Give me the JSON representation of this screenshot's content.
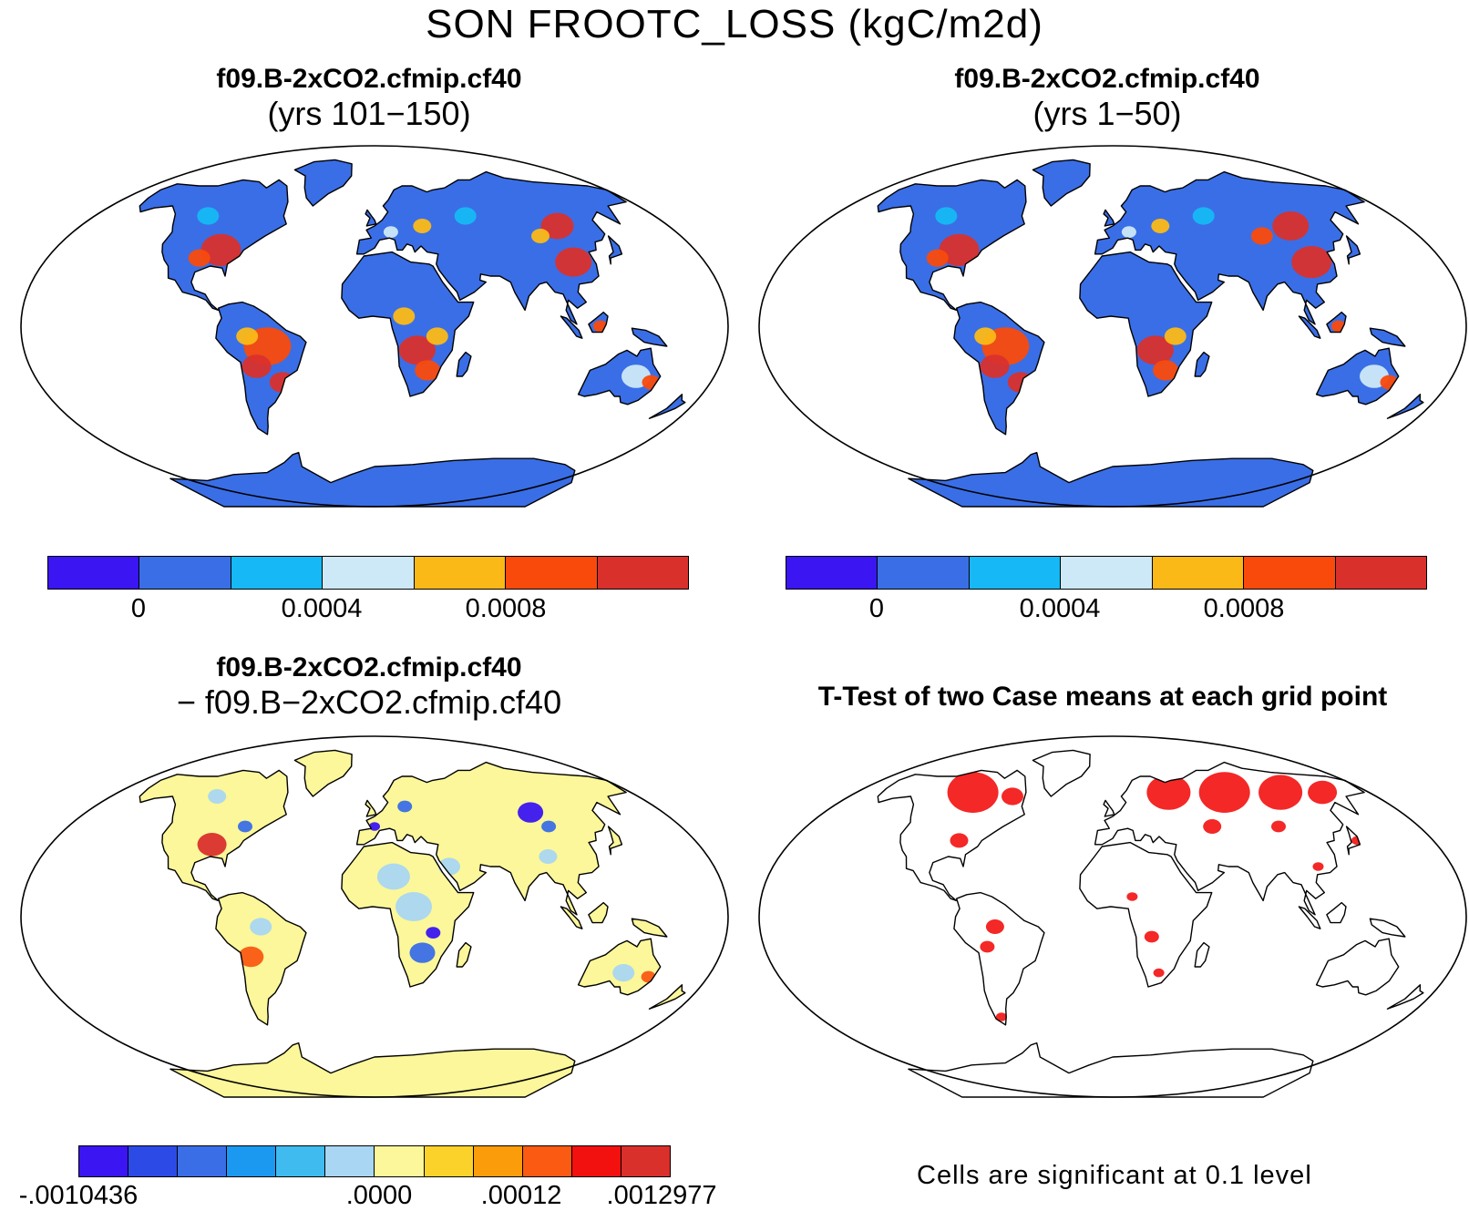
{
  "title": "SON FROOTC_LOSS (kgC/m2d)",
  "panels": {
    "top_left": {
      "line1": "f09.B-2xCO2.cfmip.cf40",
      "line2": "(yrs 101−150)"
    },
    "top_right": {
      "line1": "f09.B-2xCO2.cfmip.cf40",
      "line2": "(yrs 1−50)"
    },
    "bottom_left": {
      "line1": "f09.B-2xCO2.cfmip.cf40",
      "line2": "− f09.B−2xCO2.cfmip.cf40"
    },
    "bottom_right": {
      "line1": "T-Test of two Case means at each grid point"
    }
  },
  "colorbars": {
    "absolute": {
      "colors": [
        "#3b15f2",
        "#3a6ee6",
        "#16b8f5",
        "#cde8f7",
        "#fbb917",
        "#f94a0c",
        "#d9302c"
      ],
      "ticks": [
        "0",
        "0.0004",
        "0.0008"
      ]
    },
    "difference": {
      "colors": [
        "#3b15f2",
        "#2c4be6",
        "#3a6ee6",
        "#1b98f0",
        "#3fbbf0",
        "#a9d6f2",
        "#fbf79a",
        "#fbd22a",
        "#fb9c0a",
        "#fa5a12",
        "#f2110f",
        "#d9302c"
      ],
      "ticks": [
        "-.0010436",
        ".0000",
        ".00012",
        ".0012977"
      ]
    }
  },
  "significance_note": "Cells are significant at 0.1 level",
  "map_colors": {
    "ocean": "#ffffff",
    "land_base_abs": "#3a6ee6",
    "land_base_diff": "#fbf79a",
    "significant": "#f2110f",
    "coast": "#000000"
  }
}
